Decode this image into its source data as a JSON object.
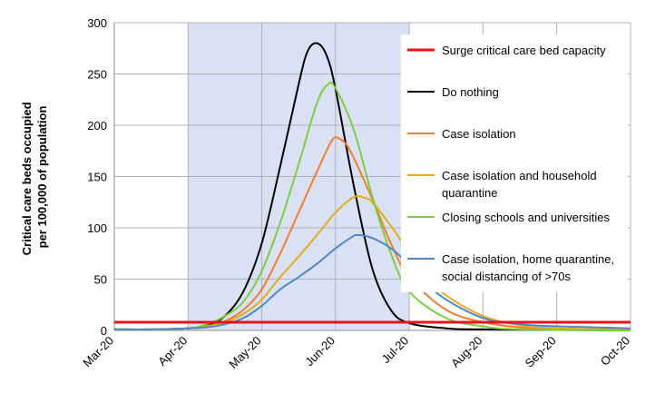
{
  "chart_data": {
    "type": "line",
    "title": "",
    "xlabel": "",
    "ylabel": [
      "Critical care beds occupied",
      "per 100,000 of population"
    ],
    "x_ticks": [
      "Mar-20",
      "Apr-20",
      "May-20",
      "Jun-20",
      "Jul-20",
      "Aug-20",
      "Sep-20",
      "Oct-20"
    ],
    "ylim": [
      0,
      300
    ],
    "y_ticks": [
      0,
      50,
      100,
      150,
      200,
      250,
      300
    ],
    "grid": true,
    "legend_position": "right",
    "shaded_region": {
      "start": "Apr-20",
      "end": "Jul-20",
      "color": "#dbe1f4"
    },
    "capacity_line": {
      "name": "Surge critical care bed capacity",
      "value": 8,
      "color": "#e8141b"
    },
    "series": [
      {
        "name": "Do nothing",
        "color": "#000000",
        "points": [
          [
            0,
            1
          ],
          [
            0.5,
            1
          ],
          [
            1,
            2
          ],
          [
            1.25,
            5
          ],
          [
            1.5,
            14
          ],
          [
            1.75,
            38
          ],
          [
            2,
            85
          ],
          [
            2.25,
            160
          ],
          [
            2.5,
            240
          ],
          [
            2.62,
            272
          ],
          [
            2.75,
            280
          ],
          [
            2.88,
            268
          ],
          [
            3,
            235
          ],
          [
            3.25,
            140
          ],
          [
            3.5,
            60
          ],
          [
            3.75,
            20
          ],
          [
            4,
            7
          ],
          [
            4.5,
            2
          ],
          [
            5,
            1
          ],
          [
            7,
            0
          ]
        ]
      },
      {
        "name": "Case isolation",
        "color": "#ef7e32",
        "points": [
          [
            0,
            1
          ],
          [
            0.5,
            1
          ],
          [
            1,
            2
          ],
          [
            1.25,
            4
          ],
          [
            1.5,
            9
          ],
          [
            1.75,
            20
          ],
          [
            2,
            40
          ],
          [
            2.25,
            75
          ],
          [
            2.5,
            115
          ],
          [
            2.75,
            155
          ],
          [
            2.95,
            185
          ],
          [
            3.05,
            187
          ],
          [
            3.2,
            175
          ],
          [
            3.5,
            128
          ],
          [
            3.75,
            85
          ],
          [
            4,
            52
          ],
          [
            4.5,
            20
          ],
          [
            5,
            8
          ],
          [
            5.5,
            3
          ],
          [
            6,
            1
          ],
          [
            7,
            0
          ]
        ]
      },
      {
        "name": "Case isolation and household quarantine",
        "color": "#e3ac1f",
        "points": [
          [
            0,
            1
          ],
          [
            0.5,
            1
          ],
          [
            1,
            2
          ],
          [
            1.25,
            4
          ],
          [
            1.5,
            8
          ],
          [
            1.75,
            16
          ],
          [
            2,
            30
          ],
          [
            2.25,
            52
          ],
          [
            2.5,
            72
          ],
          [
            2.75,
            93
          ],
          [
            3,
            115
          ],
          [
            3.25,
            130
          ],
          [
            3.4,
            129
          ],
          [
            3.5,
            125
          ],
          [
            3.75,
            102
          ],
          [
            4,
            76
          ],
          [
            4.25,
            52
          ],
          [
            4.5,
            34
          ],
          [
            5,
            14
          ],
          [
            5.5,
            5
          ],
          [
            6,
            2
          ],
          [
            7,
            1
          ]
        ]
      },
      {
        "name": "Closing schools and universities",
        "color": "#7ccd3e",
        "points": [
          [
            0,
            1
          ],
          [
            0.5,
            1
          ],
          [
            1,
            2
          ],
          [
            1.25,
            6
          ],
          [
            1.5,
            14
          ],
          [
            1.75,
            28
          ],
          [
            2,
            58
          ],
          [
            2.25,
            105
          ],
          [
            2.5,
            162
          ],
          [
            2.75,
            222
          ],
          [
            2.9,
            240
          ],
          [
            3,
            236
          ],
          [
            3.25,
            195
          ],
          [
            3.5,
            130
          ],
          [
            3.75,
            75
          ],
          [
            4,
            38
          ],
          [
            4.5,
            12
          ],
          [
            5,
            4
          ],
          [
            5.5,
            1
          ],
          [
            7,
            0
          ]
        ]
      },
      {
        "name": "Case isolation, home quarantine, social distancing of >70s",
        "color": "#4d88c8",
        "points": [
          [
            0,
            1
          ],
          [
            0.5,
            1
          ],
          [
            1,
            2
          ],
          [
            1.25,
            3
          ],
          [
            1.5,
            6
          ],
          [
            1.75,
            12
          ],
          [
            2,
            24
          ],
          [
            2.25,
            40
          ],
          [
            2.5,
            52
          ],
          [
            2.75,
            65
          ],
          [
            3,
            80
          ],
          [
            3.2,
            90
          ],
          [
            3.3,
            93
          ],
          [
            3.5,
            90
          ],
          [
            3.75,
            80
          ],
          [
            4,
            64
          ],
          [
            4.25,
            45
          ],
          [
            4.5,
            30
          ],
          [
            5,
            12
          ],
          [
            5.5,
            6
          ],
          [
            6,
            4
          ],
          [
            6.5,
            3
          ],
          [
            7,
            2
          ]
        ]
      }
    ]
  }
}
